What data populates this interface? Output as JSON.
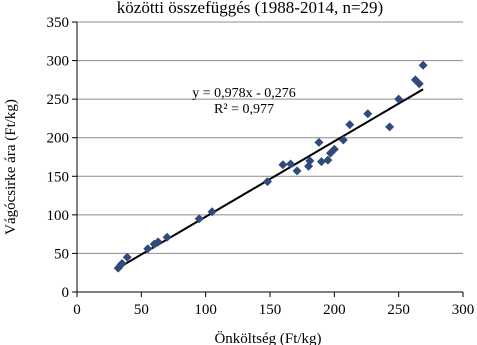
{
  "chart_data": {
    "type": "scatter",
    "title": "közötti összefüggés (1988-2014, n=29)",
    "xlabel": "Önköltség (Ft/kg)",
    "ylabel": "Vágócsirke ára (Ft/kg)",
    "xlim": [
      0,
      300
    ],
    "ylim": [
      0,
      350
    ],
    "x_ticks": [
      "0",
      "50",
      "100",
      "150",
      "200",
      "250",
      "300"
    ],
    "y_ticks": [
      "0",
      "50",
      "100",
      "150",
      "200",
      "250",
      "300",
      "350"
    ],
    "grid": "horizontal",
    "marker": "diamond",
    "color": "#2f4b7c",
    "trendline": {
      "slope": 0.978,
      "intercept": -0.276,
      "equation": "y = 0,978x - 0,276",
      "r_squared": "R² = 0,977"
    },
    "points": [
      {
        "x": 32,
        "y": 31
      },
      {
        "x": 34,
        "y": 35
      },
      {
        "x": 35,
        "y": 37
      },
      {
        "x": 39,
        "y": 45
      },
      {
        "x": 55,
        "y": 56
      },
      {
        "x": 60,
        "y": 62
      },
      {
        "x": 63,
        "y": 65
      },
      {
        "x": 70,
        "y": 71
      },
      {
        "x": 95,
        "y": 95
      },
      {
        "x": 105,
        "y": 104
      },
      {
        "x": 148,
        "y": 143
      },
      {
        "x": 160,
        "y": 165
      },
      {
        "x": 166,
        "y": 166
      },
      {
        "x": 171,
        "y": 157
      },
      {
        "x": 180,
        "y": 163
      },
      {
        "x": 181,
        "y": 170
      },
      {
        "x": 188,
        "y": 194
      },
      {
        "x": 190,
        "y": 169
      },
      {
        "x": 195,
        "y": 171
      },
      {
        "x": 197,
        "y": 180
      },
      {
        "x": 200,
        "y": 185
      },
      {
        "x": 207,
        "y": 197
      },
      {
        "x": 212,
        "y": 217
      },
      {
        "x": 226,
        "y": 231
      },
      {
        "x": 243,
        "y": 214
      },
      {
        "x": 250,
        "y": 250
      },
      {
        "x": 263,
        "y": 275
      },
      {
        "x": 266,
        "y": 270
      },
      {
        "x": 269,
        "y": 294
      }
    ]
  }
}
